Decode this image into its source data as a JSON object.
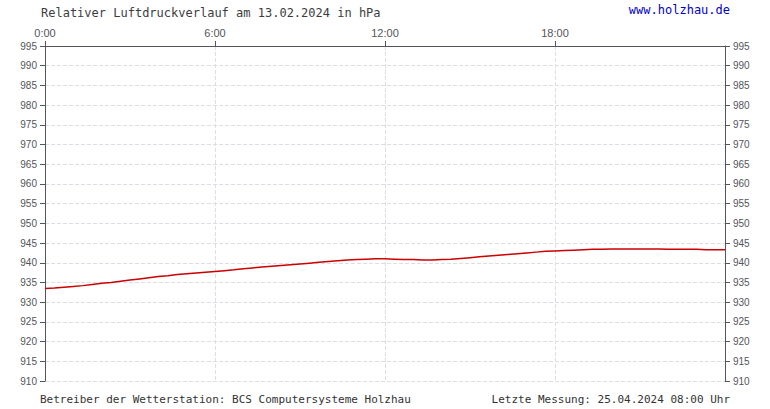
{
  "chart_data": {
    "type": "line",
    "title": "Relativer Luftdruckverlauf am 13.02.2024 in hPa",
    "annotations": [
      "www.holzhau.de",
      "Betreiber der Wetterstation: BCS Computersysteme Holzhau",
      "Letzte Messung: 25.04.2024 08:00 Uhr"
    ],
    "color": "#cc0000",
    "grid": true,
    "xlim": [
      0,
      1440
    ],
    "xticks": [
      {
        "value": 0,
        "label": "0:00"
      },
      {
        "value": 360,
        "label": "6:00"
      },
      {
        "value": 720,
        "label": "12:00"
      },
      {
        "value": 1080,
        "label": "18:00"
      }
    ],
    "ylim": [
      910,
      995
    ],
    "yticks": [
      910,
      915,
      920,
      925,
      930,
      935,
      940,
      945,
      950,
      955,
      960,
      965,
      970,
      975,
      980,
      985,
      990,
      995
    ],
    "y2lim": [
      910,
      995
    ],
    "y2ticks": [
      910,
      915,
      920,
      925,
      930,
      935,
      940,
      945,
      950,
      955,
      960,
      965,
      970,
      975,
      980,
      985,
      990,
      995
    ],
    "x": [
      0,
      20,
      40,
      60,
      80,
      100,
      120,
      140,
      160,
      180,
      200,
      220,
      240,
      260,
      280,
      300,
      320,
      340,
      360,
      380,
      400,
      420,
      440,
      460,
      480,
      500,
      520,
      540,
      560,
      580,
      600,
      620,
      640,
      660,
      680,
      700,
      720,
      740,
      760,
      780,
      800,
      820,
      840,
      860,
      880,
      900,
      920,
      940,
      960,
      980,
      1000,
      1020,
      1040,
      1060,
      1080,
      1100,
      1120,
      1140,
      1160,
      1180,
      1200,
      1220,
      1240,
      1260,
      1280,
      1300,
      1320,
      1340,
      1360,
      1380,
      1400,
      1420,
      1440
    ],
    "values": [
      933.5,
      933.6,
      933.8,
      934.0,
      934.2,
      934.5,
      934.8,
      935.0,
      935.3,
      935.6,
      935.9,
      936.2,
      936.5,
      936.7,
      937.0,
      937.2,
      937.4,
      937.6,
      937.8,
      938.0,
      938.2,
      938.5,
      938.7,
      938.9,
      939.1,
      939.3,
      939.5,
      939.7,
      939.9,
      940.1,
      940.3,
      940.5,
      940.7,
      940.8,
      940.9,
      941.0,
      941.0,
      940.9,
      940.8,
      940.8,
      940.7,
      940.7,
      940.8,
      940.9,
      941.1,
      941.3,
      941.5,
      941.7,
      941.9,
      942.1,
      942.3,
      942.5,
      942.7,
      942.9,
      943.0,
      943.1,
      943.2,
      943.3,
      943.4,
      943.4,
      943.5,
      943.5,
      943.5,
      943.5,
      943.5,
      943.5,
      943.4,
      943.4,
      943.4,
      943.4,
      943.3,
      943.3,
      943.3
    ]
  }
}
